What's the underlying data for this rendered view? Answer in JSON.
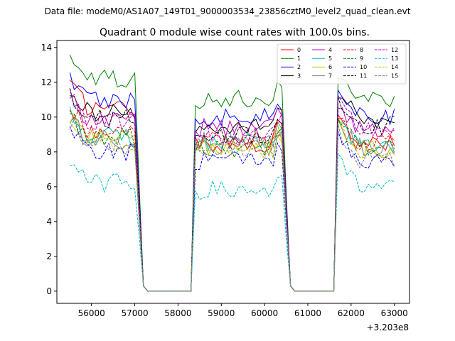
{
  "chart_data": {
    "type": "line",
    "suptitle": "Data file: modeM0/AS1A07_149T01_9000003534_23856cztM0_level2_quad_clean.evt",
    "title": "Quadrant 0 module wise count rates with 100.0s bins.",
    "xlabel": "",
    "ylabel": "",
    "x_offset_label": "+3.203e8",
    "xlim": [
      55200,
      63350
    ],
    "ylim": [
      -0.7,
      14.4
    ],
    "xticks": [
      56000,
      57000,
      58000,
      59000,
      60000,
      61000,
      62000,
      63000
    ],
    "yticks": [
      0,
      2,
      4,
      6,
      8,
      10,
      12,
      14
    ],
    "legend_position": "top-right",
    "legend_columns": 4,
    "x_start": 55500,
    "x_step": 100,
    "segments": [
      [
        55500,
        57000,
        57200
      ],
      [
        58400,
        60400,
        60600
      ],
      [
        61700,
        63000,
        63000
      ]
    ],
    "series": [
      {
        "name": "0",
        "color": "#ff0000",
        "dash": "solid",
        "levels": [
          10.6,
          8.5,
          8.4
        ]
      },
      {
        "name": "1",
        "color": "#008000",
        "dash": "solid",
        "levels": [
          12.2,
          11.0,
          11.1
        ]
      },
      {
        "name": "2",
        "color": "#0000ff",
        "dash": "solid",
        "levels": [
          11.0,
          10.0,
          10.1
        ]
      },
      {
        "name": "3",
        "color": "#000000",
        "dash": "solid",
        "levels": [
          10.3,
          9.6,
          9.9
        ]
      },
      {
        "name": "4",
        "color": "#bf00bf",
        "dash": "solid",
        "levels": [
          9.9,
          9.4,
          9.3
        ]
      },
      {
        "name": "5",
        "color": "#00bfbf",
        "dash": "solid",
        "levels": [
          8.9,
          8.5,
          8.3
        ]
      },
      {
        "name": "6",
        "color": "#bfbf00",
        "dash": "solid",
        "levels": [
          8.8,
          8.3,
          8.2
        ]
      },
      {
        "name": "7",
        "color": "#808080",
        "dash": "solid",
        "levels": [
          8.7,
          8.6,
          8.3
        ]
      },
      {
        "name": "8",
        "color": "#ff0000",
        "dash": "dashed",
        "levels": [
          9.3,
          8.6,
          8.5
        ]
      },
      {
        "name": "9",
        "color": "#008000",
        "dash": "dashed",
        "levels": [
          8.8,
          8.2,
          8.2
        ]
      },
      {
        "name": "10",
        "color": "#0000ff",
        "dash": "dashed",
        "levels": [
          8.0,
          7.5,
          7.5
        ]
      },
      {
        "name": "11",
        "color": "#000000",
        "dash": "dashed",
        "levels": [
          9.9,
          9.0,
          9.5
        ]
      },
      {
        "name": "12",
        "color": "#bf00bf",
        "dash": "dashed",
        "levels": [
          9.8,
          8.9,
          9.3
        ]
      },
      {
        "name": "13",
        "color": "#00bfbf",
        "dash": "dashed",
        "levels": [
          6.2,
          5.8,
          5.9
        ]
      },
      {
        "name": "14",
        "color": "#bfbf00",
        "dash": "dashed",
        "levels": [
          8.6,
          8.1,
          8.0
        ]
      },
      {
        "name": "15",
        "color": "#808080",
        "dash": "dashed",
        "levels": [
          8.4,
          8.3,
          7.6
        ]
      }
    ]
  }
}
